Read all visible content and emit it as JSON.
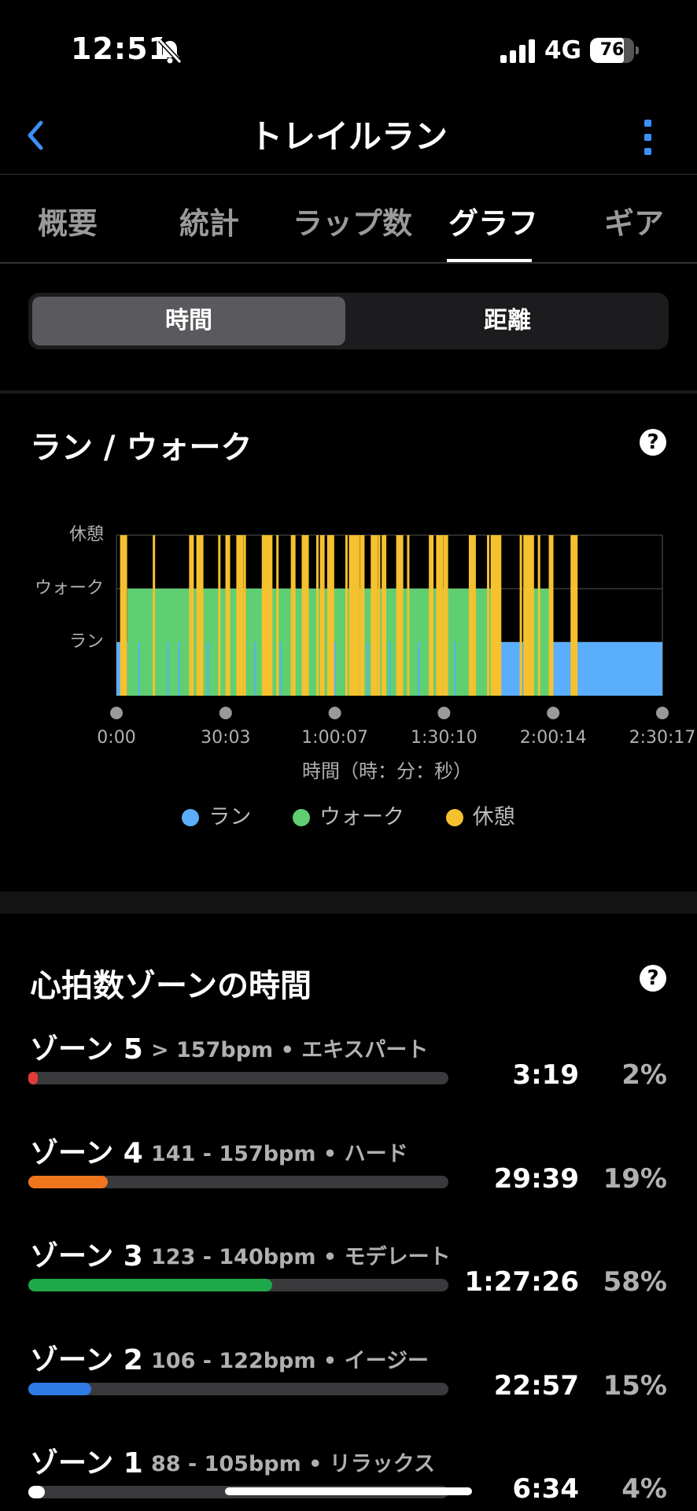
{
  "status_bar": {
    "time": "12:51",
    "network": "4G",
    "battery": "76",
    "battery_level": 0.76
  },
  "header": {
    "title": "トレイルラン"
  },
  "tabs": [
    {
      "label": "概要",
      "active": false
    },
    {
      "label": "統計",
      "active": false
    },
    {
      "label": "ラップ数",
      "active": false
    },
    {
      "label": "グラフ",
      "active": true
    },
    {
      "label": "ギア",
      "active": false
    }
  ],
  "segmented": {
    "options": [
      "時間",
      "距離"
    ],
    "selected": "時間"
  },
  "run_walk": {
    "title": "ラン / ウォーク",
    "help": "?"
  },
  "chart_data": {
    "type": "area",
    "title": "ラン / ウォーク",
    "xlabel": "時間（時：分：秒）",
    "ylabel": "",
    "x_tick_labels": [
      "0:00",
      "30:03",
      "1:00:07",
      "1:30:10",
      "2:00:14",
      "2:30:17"
    ],
    "y_categories": [
      "ラン",
      "ウォーク",
      "休憩"
    ],
    "x_range_seconds": [
      0,
      9017
    ],
    "legend_placement": "bottom-center",
    "colors": {
      "ラン": "#5aaefb",
      "ウォーク": "#5fcf72",
      "休憩": "#f5c12f"
    },
    "series": [
      {
        "name": "ラン",
        "segments_min": [
          [
            0,
            3
          ],
          [
            105,
            112
          ],
          [
            120,
            150.3
          ]
        ]
      },
      {
        "name": "ウォーク",
        "segments_min": [
          [
            3,
            105
          ],
          [
            112,
            120
          ]
        ]
      },
      {
        "name": "休憩",
        "events_min": [
          1,
          10,
          20,
          22,
          28,
          30,
          33,
          35,
          40,
          41,
          44,
          48,
          51,
          55,
          56,
          58,
          63,
          64,
          65,
          66,
          67,
          70,
          72,
          73,
          77,
          80,
          86,
          88,
          89,
          90,
          97,
          102,
          103,
          104,
          111,
          112,
          113,
          116,
          119,
          125
        ]
      }
    ]
  },
  "hr_zones": {
    "title": "心拍数ゾーンの時間",
    "help": "?",
    "zones": [
      {
        "name": "ゾーン 5",
        "detail": "> 157bpm • エキスパート",
        "time": "3:19",
        "percent": "2%",
        "fraction": 0.02,
        "color": "#e03a3a"
      },
      {
        "name": "ゾーン 4",
        "detail": "141 - 157bpm • ハード",
        "time": "29:39",
        "percent": "19%",
        "fraction": 0.19,
        "color": "#f0761e"
      },
      {
        "name": "ゾーン 3",
        "detail": "123 - 140bpm • モデレート",
        "time": "1:27:26",
        "percent": "58%",
        "fraction": 0.58,
        "color": "#1fa84a"
      },
      {
        "name": "ゾーン 2",
        "detail": "106 - 122bpm • イージー",
        "time": "22:57",
        "percent": "15%",
        "fraction": 0.15,
        "color": "#2f7ae5"
      },
      {
        "name": "ゾーン 1",
        "detail": "88 - 105bpm • リラックス",
        "time": "6:34",
        "percent": "4%",
        "fraction": 0.04,
        "color": "#ffffff"
      }
    ]
  }
}
